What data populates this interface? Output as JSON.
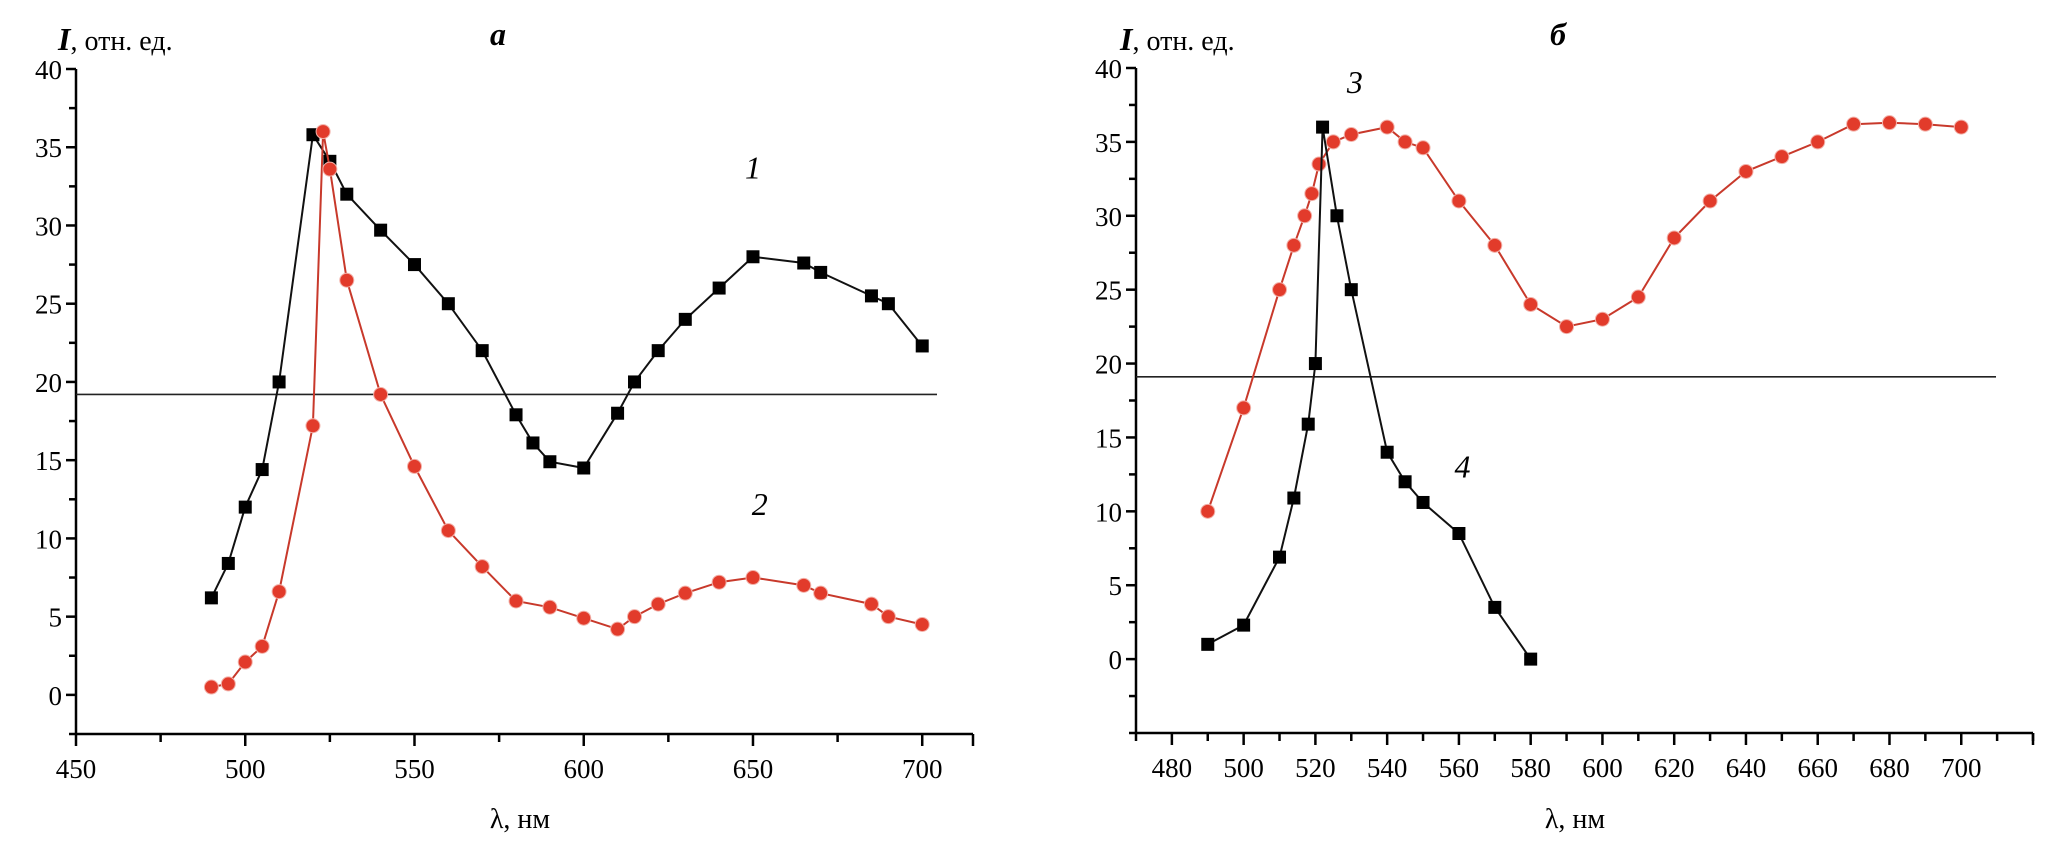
{
  "chart_data": [
    {
      "type": "line",
      "panel": "а",
      "title": "a",
      "ylabel_italic": "I",
      "ylabel_rest": ", отн. ед.",
      "xlabel": "λ, нм",
      "xlim": [
        450,
        715
      ],
      "ylim": [
        -2.5,
        40
      ],
      "xticks": [
        450,
        500,
        550,
        600,
        650,
        700
      ],
      "xminor_step": 25,
      "yticks": [
        0,
        5,
        10,
        15,
        20,
        25,
        30,
        35,
        40
      ],
      "yminor_step": 2.5,
      "grid": false,
      "reference_line_y": 19.2,
      "series": [
        {
          "name": "1",
          "marker": "square",
          "color": "#000000",
          "label_at": [
            650,
            33
          ],
          "x": [
            490,
            495,
            500,
            505,
            510,
            520,
            525,
            530,
            540,
            550,
            560,
            570,
            580,
            585,
            590,
            600,
            610,
            615,
            622,
            630,
            640,
            650,
            665,
            670,
            685,
            690,
            700
          ],
          "y": [
            6.2,
            8.4,
            12.0,
            14.4,
            20.0,
            35.8,
            34.1,
            32.0,
            29.7,
            27.5,
            25.0,
            22.0,
            17.9,
            16.1,
            14.9,
            14.5,
            18.0,
            20.0,
            22.0,
            24.0,
            26.0,
            28.0,
            27.6,
            27.0,
            25.5,
            25.0,
            22.3
          ]
        },
        {
          "name": "2",
          "marker": "circle",
          "color": "#e23b2b",
          "label_at": [
            652,
            11.5
          ],
          "x": [
            490,
            495,
            500,
            505,
            510,
            520,
            523,
            525,
            530,
            540,
            550,
            560,
            570,
            580,
            590,
            600,
            610,
            615,
            622,
            630,
            640,
            650,
            665,
            670,
            685,
            690,
            700
          ],
          "y": [
            0.5,
            0.7,
            2.1,
            3.1,
            6.6,
            17.2,
            36.0,
            33.6,
            26.5,
            19.2,
            14.6,
            10.5,
            8.2,
            6.0,
            5.6,
            4.9,
            4.2,
            5.0,
            5.8,
            6.5,
            7.2,
            7.5,
            7.0,
            6.5,
            5.8,
            5.0,
            4.5
          ]
        }
      ]
    },
    {
      "type": "line",
      "panel": "б",
      "title": "б",
      "ylabel_italic": "I",
      "ylabel_rest": ", отн. ед.",
      "xlabel": "λ, нм",
      "xlim": [
        470,
        720
      ],
      "ylim": [
        -5,
        40
      ],
      "xticks": [
        480,
        500,
        520,
        540,
        560,
        580,
        600,
        620,
        640,
        660,
        680,
        700
      ],
      "xminor_step": 10,
      "yticks": [
        0,
        5,
        10,
        15,
        20,
        25,
        30,
        35,
        40
      ],
      "yminor_step": 2.5,
      "grid": false,
      "reference_line_y": 19.1,
      "series": [
        {
          "name": "3",
          "marker": "circle",
          "color": "#e23b2b",
          "label_at": [
            531,
            38.3
          ],
          "x": [
            490,
            500,
            510,
            514,
            517,
            519,
            521,
            525,
            530,
            540,
            545,
            550,
            560,
            570,
            580,
            590,
            600,
            610,
            620,
            630,
            640,
            650,
            660,
            670,
            680,
            690,
            700
          ],
          "y": [
            10.0,
            17.0,
            25.0,
            28.0,
            30.0,
            31.5,
            33.5,
            35.0,
            35.5,
            36.0,
            35.0,
            34.6,
            31.0,
            28.0,
            24.0,
            22.5,
            23.0,
            24.5,
            28.5,
            31.0,
            33.0,
            34.0,
            35.0,
            36.2,
            36.3,
            36.2,
            36.0
          ]
        },
        {
          "name": "4",
          "marker": "square",
          "color": "#000000",
          "label_at": [
            561,
            12.3
          ],
          "x": [
            490,
            500,
            510,
            514,
            518,
            520,
            522,
            526,
            530,
            540,
            545,
            550,
            560,
            570,
            580
          ],
          "y": [
            1.0,
            2.3,
            6.9,
            10.9,
            15.9,
            20.0,
            36.0,
            30.0,
            25.0,
            14.0,
            12.0,
            10.6,
            8.5,
            3.5,
            0.0
          ]
        }
      ]
    }
  ]
}
